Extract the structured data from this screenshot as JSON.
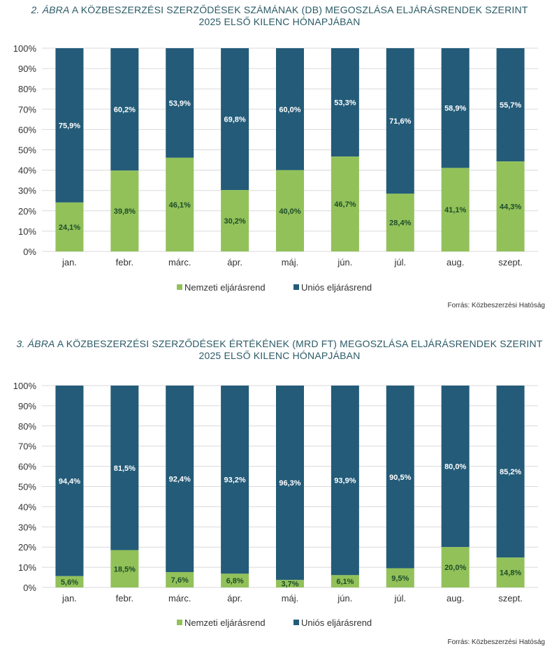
{
  "charts": [
    {
      "title_num": "2. ÁBRA",
      "title_rest": " A KÖZBESZERZÉSI SZERZŐDÉSEK SZÁMÁNAK (DB) MEGOSZLÁSA ELJÁRÁSRENDEK SZERINT",
      "title_line2": "2025 ELSŐ KILENC HÓNAPJÁBAN",
      "source": "Forrás: Közbeszerzési Hatóság"
    },
    {
      "title_num": "3. ÁBRA",
      "title_rest": " A KÖZBESZERZÉSI SZERZŐDÉSEK ÉRTÉKÉNEK (MRD FT) MEGOSZLÁSA ELJÁRÁSRENDEK SZERINT",
      "title_line2": "2025 ELSŐ KILENC HÓNAPJÁBAN",
      "source": "Forrás: Közbeszerzési Hatóság"
    }
  ],
  "colors": {
    "nemzeti": "#92c15a",
    "unios": "#235b78",
    "nemzeti_label": "#1d4d28",
    "unios_label": "#ffffff",
    "title": "#2b5a66",
    "grid": "#d9d9d9"
  },
  "chart_data": [
    {
      "type": "bar",
      "stacked": true,
      "title": "2. ÁBRA A KÖZBESZERZÉSI SZERZŐDÉSEK SZÁMÁNAK (DB) MEGOSZLÁSA ELJÁRÁSRENDEK SZERINT 2025 ELSŐ KILENC HÓNAPJÁBAN",
      "categories": [
        "jan.",
        "febr.",
        "márc.",
        "ápr.",
        "máj.",
        "jún.",
        "júl.",
        "aug.",
        "szept."
      ],
      "series": [
        {
          "name": "Nemzeti eljárásrend",
          "values": [
            24.1,
            39.8,
            46.1,
            30.2,
            40.0,
            46.7,
            28.4,
            41.1,
            44.3
          ],
          "labels": [
            "24,1%",
            "39,8%",
            "46,1%",
            "30,2%",
            "40,0%",
            "46,7%",
            "28,4%",
            "41,1%",
            "44,3%"
          ]
        },
        {
          "name": "Uniós eljárásrend",
          "values": [
            75.9,
            60.2,
            53.9,
            69.8,
            60.0,
            53.3,
            71.6,
            58.9,
            55.7
          ],
          "labels": [
            "75,9%",
            "60,2%",
            "53,9%",
            "69,8%",
            "60,0%",
            "53,3%",
            "71,6%",
            "58,9%",
            "55,7%"
          ]
        }
      ],
      "yticks": [
        "0%",
        "10%",
        "20%",
        "30%",
        "40%",
        "50%",
        "60%",
        "70%",
        "80%",
        "90%",
        "100%"
      ],
      "ylim": [
        0,
        100
      ],
      "grid": true,
      "legend": "bottom"
    },
    {
      "type": "bar",
      "stacked": true,
      "title": "3. ÁBRA A KÖZBESZERZÉSI SZERZŐDÉSEK ÉRTÉKÉNEK (MRD FT) MEGOSZLÁSA ELJÁRÁSRENDEK SZERINT 2025 ELSŐ KILENC HÓNAPJÁBAN",
      "categories": [
        "jan.",
        "febr.",
        "márc.",
        "ápr.",
        "máj.",
        "jún.",
        "júl.",
        "aug.",
        "szept."
      ],
      "series": [
        {
          "name": "Nemzeti eljárásrend",
          "values": [
            5.6,
            18.5,
            7.6,
            6.8,
            3.7,
            6.1,
            9.5,
            20.0,
            14.8
          ],
          "labels": [
            "5,6%",
            "18,5%",
            "7,6%",
            "6,8%",
            "3,7%",
            "6,1%",
            "9,5%",
            "20,0%",
            "14,8%"
          ]
        },
        {
          "name": "Uniós eljárásrend",
          "values": [
            94.4,
            81.5,
            92.4,
            93.2,
            96.3,
            93.9,
            90.5,
            80.0,
            85.2
          ],
          "labels": [
            "94,4%",
            "81,5%",
            "92,4%",
            "93,2%",
            "96,3%",
            "93,9%",
            "90,5%",
            "80,0%",
            "85,2%"
          ]
        }
      ],
      "yticks": [
        "0%",
        "10%",
        "20%",
        "30%",
        "40%",
        "50%",
        "60%",
        "70%",
        "80%",
        "90%",
        "100%"
      ],
      "ylim": [
        0,
        100
      ],
      "grid": true,
      "legend": "bottom"
    }
  ]
}
